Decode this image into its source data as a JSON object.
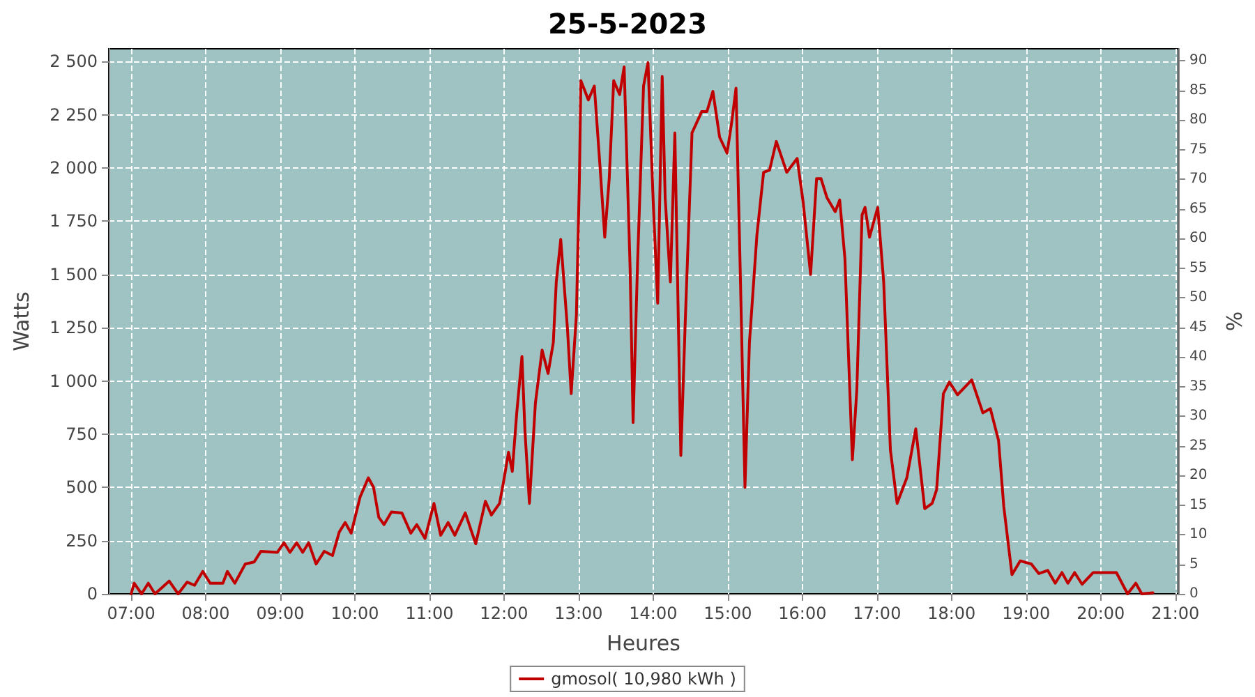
{
  "chart_data": {
    "type": "line",
    "title": "25-5-2023",
    "xlabel": "Heures",
    "ylabel": "Watts",
    "y2label": "%",
    "xlim": [
      6.7,
      21.04
    ],
    "xticks": [
      {
        "value": 7,
        "label": "07:00"
      },
      {
        "value": 8,
        "label": "08:00"
      },
      {
        "value": 9,
        "label": "09:00"
      },
      {
        "value": 10,
        "label": "10:00"
      },
      {
        "value": 11,
        "label": "11:00"
      },
      {
        "value": 12,
        "label": "12:00"
      },
      {
        "value": 13,
        "label": "13:00"
      },
      {
        "value": 14,
        "label": "14:00"
      },
      {
        "value": 15,
        "label": "15:00"
      },
      {
        "value": 16,
        "label": "16:00"
      },
      {
        "value": 17,
        "label": "17:00"
      },
      {
        "value": 18,
        "label": "18:00"
      },
      {
        "value": 19,
        "label": "19:00"
      },
      {
        "value": 20,
        "label": "20:00"
      },
      {
        "value": 21,
        "label": "21:00"
      }
    ],
    "ylim": [
      0,
      2560
    ],
    "yticks": [
      0,
      250,
      500,
      750,
      {
        "value": 1000,
        "label": "1 000"
      },
      {
        "value": 1250,
        "label": "1 250"
      },
      {
        "value": 1500,
        "label": "1 500"
      },
      {
        "value": 1750,
        "label": "1 750"
      },
      {
        "value": 2000,
        "label": "2 000"
      },
      {
        "value": 2250,
        "label": "2 250"
      },
      {
        "value": 2500,
        "label": "2 500"
      }
    ],
    "y2lim": [
      0,
      92
    ],
    "y2ticks": [
      0,
      5,
      10,
      15,
      20,
      25,
      30,
      35,
      40,
      45,
      50,
      55,
      60,
      65,
      70,
      75,
      80,
      85,
      90
    ],
    "grid": true,
    "legend": "bottom",
    "marker": "none",
    "line_style": "solid",
    "series": [
      {
        "name": "gmosol( 10,980 kWh )",
        "color": "#c00000",
        "x": [
          7.0,
          7.04,
          7.14,
          7.23,
          7.32,
          7.51,
          7.63,
          7.75,
          7.85,
          7.96,
          8.06,
          8.23,
          8.29,
          8.39,
          8.53,
          8.65,
          8.74,
          8.96,
          9.05,
          9.13,
          9.22,
          9.3,
          9.38,
          9.48,
          9.59,
          9.7,
          9.79,
          9.87,
          9.95,
          10.07,
          10.18,
          10.25,
          10.32,
          10.39,
          10.49,
          10.63,
          10.75,
          10.83,
          10.94,
          11.06,
          11.15,
          11.25,
          11.34,
          11.48,
          11.62,
          11.75,
          11.83,
          11.94,
          11.99,
          12.06,
          12.11,
          12.17,
          12.24,
          12.28,
          12.34,
          12.42,
          12.51,
          12.59,
          12.66,
          12.7,
          12.76,
          12.85,
          12.9,
          12.97,
          13.01,
          13.03,
          13.13,
          13.21,
          13.29,
          13.35,
          13.41,
          13.47,
          13.55,
          13.61,
          13.69,
          13.73,
          13.79,
          13.87,
          13.93,
          14.0,
          14.06,
          14.12,
          14.16,
          14.23,
          14.29,
          14.37,
          14.43,
          14.52,
          14.65,
          14.72,
          14.8,
          14.89,
          14.99,
          15.05,
          15.11,
          15.17,
          15.23,
          15.29,
          15.39,
          15.48,
          15.56,
          15.65,
          15.79,
          15.93,
          16.01,
          16.11,
          16.19,
          16.25,
          16.33,
          16.44,
          16.5,
          16.57,
          16.67,
          16.73,
          16.8,
          16.84,
          16.9,
          17.01,
          17.09,
          17.18,
          17.27,
          17.4,
          17.52,
          17.64,
          17.74,
          17.8,
          17.89,
          17.97,
          18.08,
          18.27,
          18.42,
          18.52,
          18.63,
          18.7,
          18.81,
          18.92,
          19.07,
          19.17,
          19.29,
          19.39,
          19.48,
          19.56,
          19.65,
          19.75,
          19.9,
          20.21,
          20.36,
          20.47,
          20.55,
          20.7
        ],
        "values": [
          0,
          50,
          0,
          50,
          0,
          60,
          0,
          55,
          40,
          105,
          50,
          50,
          105,
          50,
          140,
          150,
          200,
          195,
          240,
          195,
          240,
          195,
          240,
          140,
          200,
          180,
          290,
          335,
          285,
          455,
          545,
          500,
          360,
          325,
          385,
          380,
          285,
          325,
          260,
          425,
          275,
          335,
          275,
          380,
          235,
          435,
          370,
          425,
          520,
          665,
          575,
          850,
          1115,
          765,
          425,
          895,
          1145,
          1035,
          1180,
          1465,
          1665,
          1245,
          940,
          1310,
          1945,
          2410,
          2320,
          2385,
          1990,
          1675,
          1950,
          2410,
          2345,
          2475,
          1530,
          805,
          1555,
          2385,
          2495,
          1840,
          1365,
          2430,
          1860,
          1465,
          2165,
          650,
          1285,
          2165,
          2265,
          2265,
          2360,
          2145,
          2070,
          2210,
          2375,
          1465,
          500,
          1180,
          1685,
          1980,
          1990,
          2125,
          1980,
          2045,
          1840,
          1500,
          1950,
          1950,
          1860,
          1795,
          1850,
          1575,
          630,
          960,
          1780,
          1815,
          1675,
          1815,
          1465,
          675,
          425,
          545,
          775,
          400,
          425,
          490,
          940,
          995,
          935,
          1005,
          850,
          870,
          720,
          410,
          90,
          155,
          140,
          95,
          110,
          50,
          100,
          50,
          100,
          45,
          100,
          100,
          0,
          50,
          0,
          5
        ]
      }
    ]
  }
}
